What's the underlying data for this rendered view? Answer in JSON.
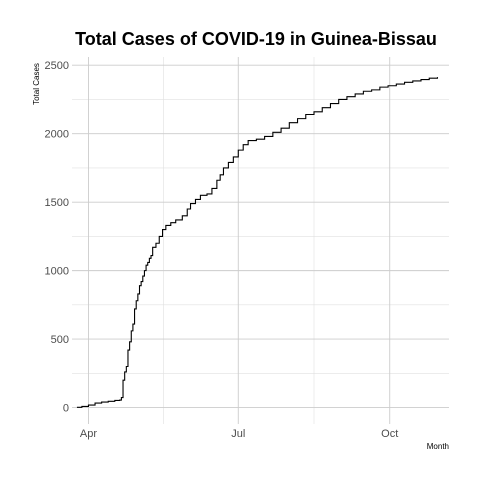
{
  "chart_data": {
    "type": "line",
    "title": "Total Cases of COVID-19 in Guinea-Bissau",
    "xlabel": "Month",
    "ylabel": "Total Cases",
    "x_ticks": [
      {
        "label": "Apr",
        "date": "2020-04-01"
      },
      {
        "label": "Jul",
        "date": "2020-07-01"
      },
      {
        "label": "Oct",
        "date": "2020-10-01"
      }
    ],
    "y_ticks": [
      0,
      500,
      1000,
      1500,
      2000,
      2500
    ],
    "xlim": [
      "2020-03-22",
      "2020-11-06"
    ],
    "ylim": [
      -120,
      2560
    ],
    "grid": true,
    "series": [
      {
        "name": "",
        "color": "#000000",
        "points": [
          [
            "2020-03-25",
            2
          ],
          [
            "2020-03-28",
            8
          ],
          [
            "2020-04-01",
            18
          ],
          [
            "2020-04-05",
            33
          ],
          [
            "2020-04-09",
            40
          ],
          [
            "2020-04-13",
            46
          ],
          [
            "2020-04-17",
            52
          ],
          [
            "2020-04-20",
            55
          ],
          [
            "2020-04-21",
            73
          ],
          [
            "2020-04-22",
            200
          ],
          [
            "2020-04-23",
            260
          ],
          [
            "2020-04-24",
            300
          ],
          [
            "2020-04-25",
            420
          ],
          [
            "2020-04-26",
            480
          ],
          [
            "2020-04-27",
            560
          ],
          [
            "2020-04-28",
            610
          ],
          [
            "2020-04-29",
            720
          ],
          [
            "2020-04-30",
            780
          ],
          [
            "2020-05-01",
            830
          ],
          [
            "2020-05-02",
            890
          ],
          [
            "2020-05-03",
            920
          ],
          [
            "2020-05-04",
            960
          ],
          [
            "2020-05-05",
            1000
          ],
          [
            "2020-05-06",
            1040
          ],
          [
            "2020-05-07",
            1060
          ],
          [
            "2020-05-08",
            1090
          ],
          [
            "2020-05-09",
            1110
          ],
          [
            "2020-05-10",
            1170
          ],
          [
            "2020-05-12",
            1200
          ],
          [
            "2020-05-14",
            1250
          ],
          [
            "2020-05-16",
            1300
          ],
          [
            "2020-05-18",
            1330
          ],
          [
            "2020-05-21",
            1350
          ],
          [
            "2020-05-24",
            1370
          ],
          [
            "2020-05-28",
            1400
          ],
          [
            "2020-05-31",
            1450
          ],
          [
            "2020-06-02",
            1490
          ],
          [
            "2020-06-05",
            1520
          ],
          [
            "2020-06-08",
            1550
          ],
          [
            "2020-06-12",
            1560
          ],
          [
            "2020-06-15",
            1600
          ],
          [
            "2020-06-18",
            1660
          ],
          [
            "2020-06-20",
            1700
          ],
          [
            "2020-06-22",
            1750
          ],
          [
            "2020-06-25",
            1790
          ],
          [
            "2020-06-28",
            1830
          ],
          [
            "2020-07-01",
            1880
          ],
          [
            "2020-07-04",
            1920
          ],
          [
            "2020-07-07",
            1950
          ],
          [
            "2020-07-12",
            1960
          ],
          [
            "2020-07-17",
            1980
          ],
          [
            "2020-07-22",
            2010
          ],
          [
            "2020-07-27",
            2040
          ],
          [
            "2020-08-01",
            2080
          ],
          [
            "2020-08-06",
            2110
          ],
          [
            "2020-08-11",
            2140
          ],
          [
            "2020-08-16",
            2160
          ],
          [
            "2020-08-21",
            2190
          ],
          [
            "2020-08-26",
            2220
          ],
          [
            "2020-08-31",
            2250
          ],
          [
            "2020-09-05",
            2270
          ],
          [
            "2020-09-10",
            2290
          ],
          [
            "2020-09-15",
            2310
          ],
          [
            "2020-09-20",
            2320
          ],
          [
            "2020-09-25",
            2340
          ],
          [
            "2020-09-30",
            2350
          ],
          [
            "2020-10-05",
            2362
          ],
          [
            "2020-10-10",
            2375
          ],
          [
            "2020-10-15",
            2385
          ],
          [
            "2020-10-20",
            2395
          ],
          [
            "2020-10-25",
            2405
          ],
          [
            "2020-10-30",
            2413
          ]
        ]
      }
    ]
  }
}
